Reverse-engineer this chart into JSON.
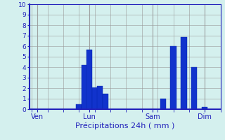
{
  "title": "",
  "xlabel": "Précipitations 24h ( mm )",
  "ylabel": "",
  "ylim": [
    0,
    10
  ],
  "yticks": [
    0,
    1,
    2,
    3,
    4,
    5,
    6,
    7,
    8,
    9,
    10
  ],
  "background_color": "#d4f0ee",
  "bar_color": "#1133cc",
  "bar_edge_color": "#0022aa",
  "xlabel_color": "#2222bb",
  "tick_color": "#2222bb",
  "grid_color": "#999999",
  "x_labels": [
    "Ven",
    "Lun",
    "Sam",
    "Dim"
  ],
  "x_tick_positions": [
    2,
    22,
    46,
    66
  ],
  "bar_positions": [
    18,
    20,
    22,
    24,
    26,
    28,
    50,
    54,
    58,
    62,
    66
  ],
  "bar_heights": [
    0.5,
    4.2,
    5.7,
    2.1,
    2.2,
    1.5,
    1.0,
    6.0,
    6.9,
    4.0,
    0.2
  ],
  "bar_width": 2.2,
  "xlim": [
    -1,
    72
  ],
  "num_x_slots": 72
}
